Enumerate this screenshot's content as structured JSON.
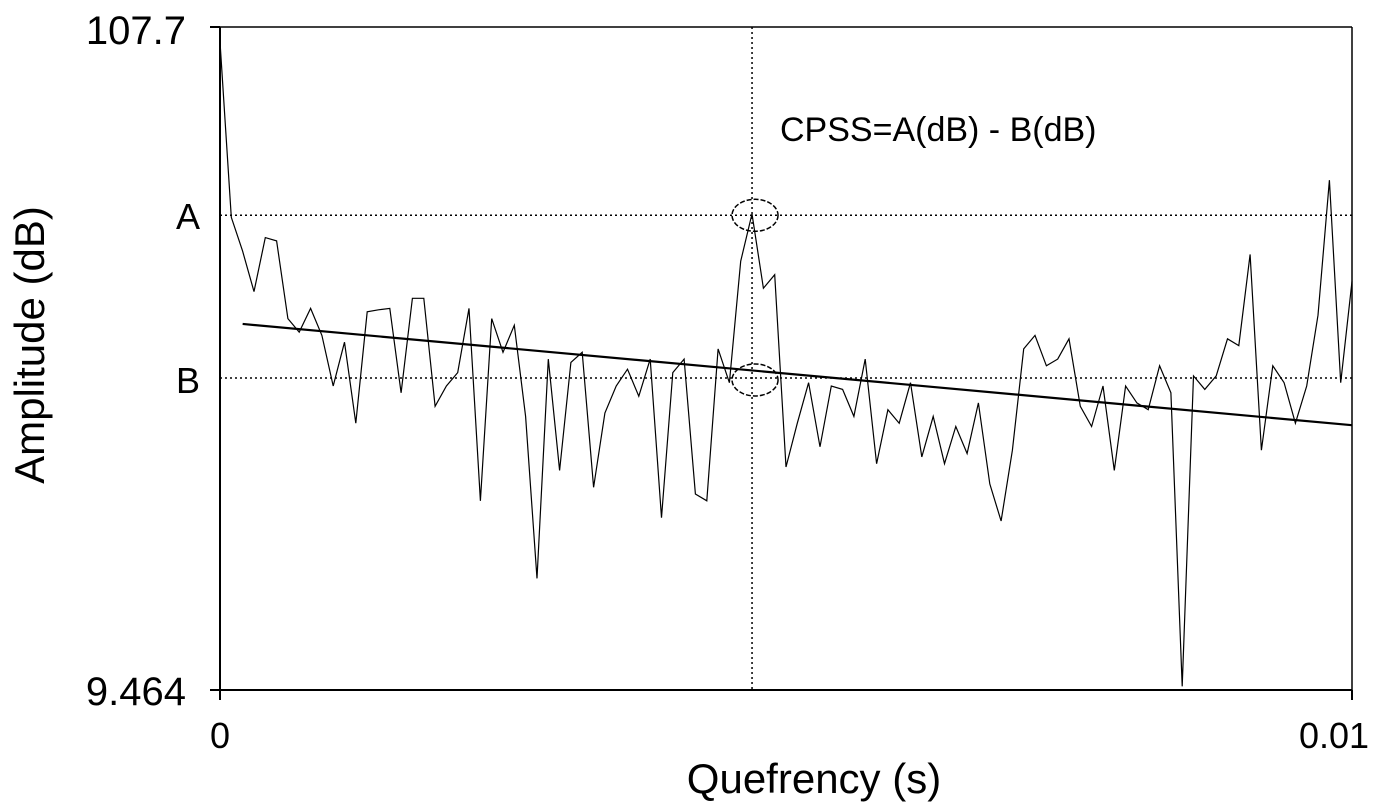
{
  "chart_data": {
    "type": "line",
    "title": "",
    "xlabel": "Quefrency (s)",
    "ylabel": "Amplitude (dB)",
    "xlim": [
      0,
      0.01
    ],
    "ylim": [
      9.464,
      107.7
    ],
    "x_tick_labels": [
      "0",
      "0.01"
    ],
    "y_tick_labels": [
      "107.7",
      "9.464"
    ],
    "annotation": "CPSS=A(dB) - B(dB)",
    "marker_labels": {
      "a": "A",
      "b": "B"
    },
    "peak": {
      "x": 0.0047,
      "a_value": 79.8,
      "b_value": 55.7
    },
    "regression_line": {
      "x": [
        0.0002,
        0.01
      ],
      "y": [
        63.7,
        48.7
      ]
    },
    "grid": false,
    "series": [
      {
        "x": [
          0.0,
          0.0001,
          0.0002,
          0.0003,
          0.0004,
          0.0005,
          0.0006,
          0.0007,
          0.0008,
          0.0009,
          0.001,
          0.0011,
          0.0012,
          0.0013,
          0.0014,
          0.0015,
          0.0016,
          0.0017,
          0.0018,
          0.0019,
          0.002,
          0.0021,
          0.0022,
          0.0023,
          0.0024,
          0.0025,
          0.0026,
          0.0027,
          0.0028,
          0.0029,
          0.003,
          0.0031,
          0.0032,
          0.0033,
          0.0034,
          0.0035,
          0.0036,
          0.0037,
          0.0038,
          0.0039,
          0.004,
          0.0041,
          0.0042,
          0.0043,
          0.0044,
          0.0045,
          0.0046,
          0.0047,
          0.0048,
          0.0049,
          0.005,
          0.0051,
          0.0052,
          0.0053,
          0.0054,
          0.0055,
          0.0056,
          0.0057,
          0.0058,
          0.0059,
          0.006,
          0.0061,
          0.0062,
          0.0063,
          0.0064,
          0.0065,
          0.0066,
          0.0067,
          0.0068,
          0.0069,
          0.007,
          0.0071,
          0.0072,
          0.0073,
          0.0074,
          0.0075,
          0.0076,
          0.0077,
          0.0078,
          0.0079,
          0.008,
          0.0081,
          0.0082,
          0.0083,
          0.0084,
          0.0085,
          0.0086,
          0.0087,
          0.0088,
          0.0089,
          0.009,
          0.0091,
          0.0092,
          0.0093,
          0.0094,
          0.0095,
          0.0096,
          0.0097,
          0.0098,
          0.0099,
          0.01
        ],
        "y": [
          105.5,
          79.5,
          74.5,
          68.5,
          76.5,
          76.0,
          64.5,
          62.5,
          66.0,
          62.0,
          54.5,
          61.0,
          49.0,
          65.5,
          65.8,
          66.0,
          53.5,
          67.5,
          67.5,
          51.5,
          54.5,
          56.5,
          66.0,
          37.5,
          64.5,
          59.5,
          63.5,
          50.0,
          26.0,
          58.5,
          42.0,
          58.0,
          59.5,
          39.5,
          50.5,
          54.5,
          57.0,
          53.0,
          58.5,
          35.0,
          56.5,
          58.5,
          38.5,
          37.5,
          60.0,
          55.0,
          73.0,
          80.0,
          69.0,
          71.0,
          42.5,
          49.0,
          55.0,
          45.5,
          54.5,
          54.0,
          50.0,
          58.5,
          43.0,
          51.0,
          49.0,
          55.0,
          44.0,
          50.0,
          43.0,
          48.5,
          44.5,
          52.0,
          40.0,
          34.5,
          45.0,
          60.0,
          62.0,
          57.5,
          58.5,
          61.5,
          51.5,
          48.5,
          54.5,
          42.0,
          54.5,
          52.0,
          51.0,
          57.5,
          53.5,
          10.0,
          56.0,
          54.0,
          56.0,
          61.5,
          60.5,
          74.0,
          45.0,
          57.5,
          55.0,
          49.0,
          54.5,
          65.0,
          85.0,
          55.0,
          70.0
        ]
      }
    ]
  }
}
